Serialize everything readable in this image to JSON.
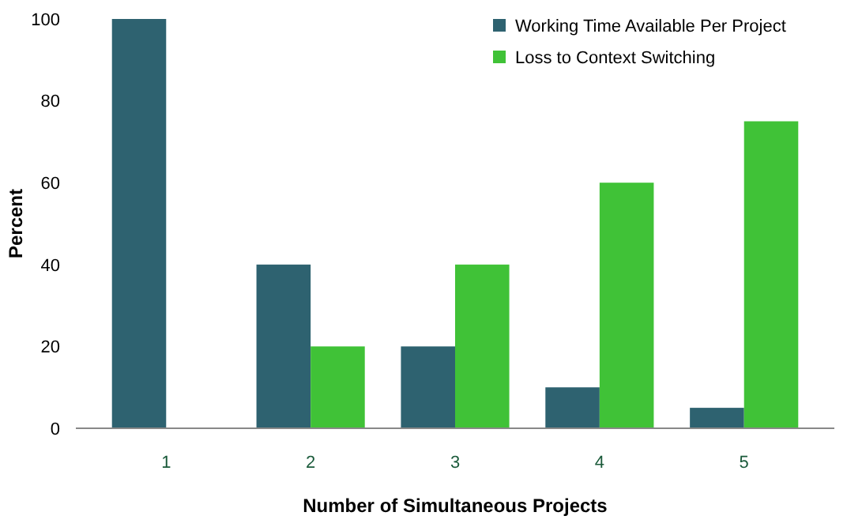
{
  "chart_data": {
    "type": "bar",
    "xlabel": "Number of Simultaneous Projects",
    "ylabel": "Percent",
    "categories": [
      "1",
      "2",
      "3",
      "4",
      "5"
    ],
    "series": [
      {
        "name": "Working Time Available Per Project",
        "color": "#2e6270",
        "values": [
          100,
          40,
          20,
          10,
          5
        ]
      },
      {
        "name": "Loss to Context Switching",
        "color": "#40c237",
        "values": [
          0,
          20,
          40,
          60,
          75
        ]
      }
    ],
    "ylim": [
      0,
      100
    ],
    "yticks": [
      0,
      20,
      40,
      60,
      80,
      100
    ],
    "legend": "top right"
  }
}
